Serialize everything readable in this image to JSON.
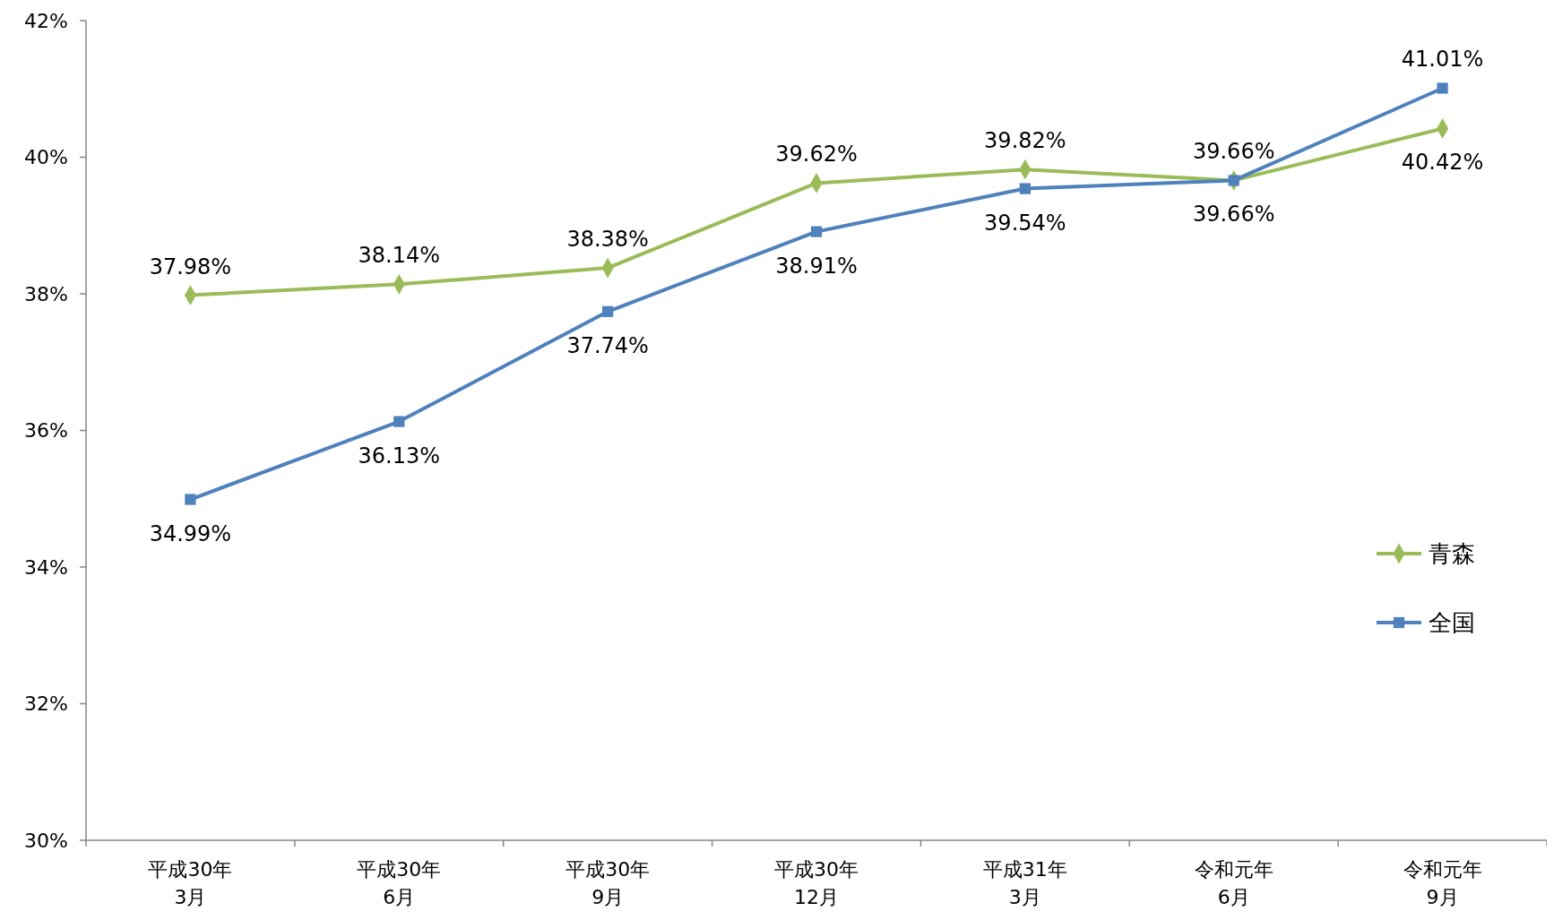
{
  "chart_data": {
    "type": "line",
    "categories": [
      "平成30年\n3月",
      "平成30年\n6月",
      "平成30年\n9月",
      "平成30年\n12月",
      "平成31年\n3月",
      "令和元年\n6月",
      "令和元年\n9月"
    ],
    "series": [
      {
        "name": "青森",
        "color": "#9bbb59",
        "marker": "diamond",
        "values": [
          37.98,
          38.14,
          38.38,
          39.62,
          39.82,
          39.66,
          40.42
        ],
        "value_labels": [
          "37.98%",
          "38.14%",
          "38.38%",
          "39.62%",
          "39.82%",
          "39.66%",
          "40.42%"
        ]
      },
      {
        "name": "全国",
        "color": "#4f81bd",
        "marker": "square",
        "values": [
          34.99,
          36.13,
          37.74,
          38.91,
          39.54,
          39.66,
          41.01
        ],
        "value_labels": [
          "34.99%",
          "36.13%",
          "37.74%",
          "38.91%",
          "39.54%",
          "39.66%",
          "41.01%"
        ]
      }
    ],
    "ylim": [
      30,
      42
    ],
    "yticks": [
      {
        "value": 30,
        "label": "30%"
      },
      {
        "value": 32,
        "label": "32%"
      },
      {
        "value": 34,
        "label": "34%"
      },
      {
        "value": 36,
        "label": "36%"
      },
      {
        "value": 38,
        "label": "38%"
      },
      {
        "value": 40,
        "label": "40%"
      },
      {
        "value": 42,
        "label": "42%"
      }
    ],
    "legend": "right",
    "grid": false
  }
}
